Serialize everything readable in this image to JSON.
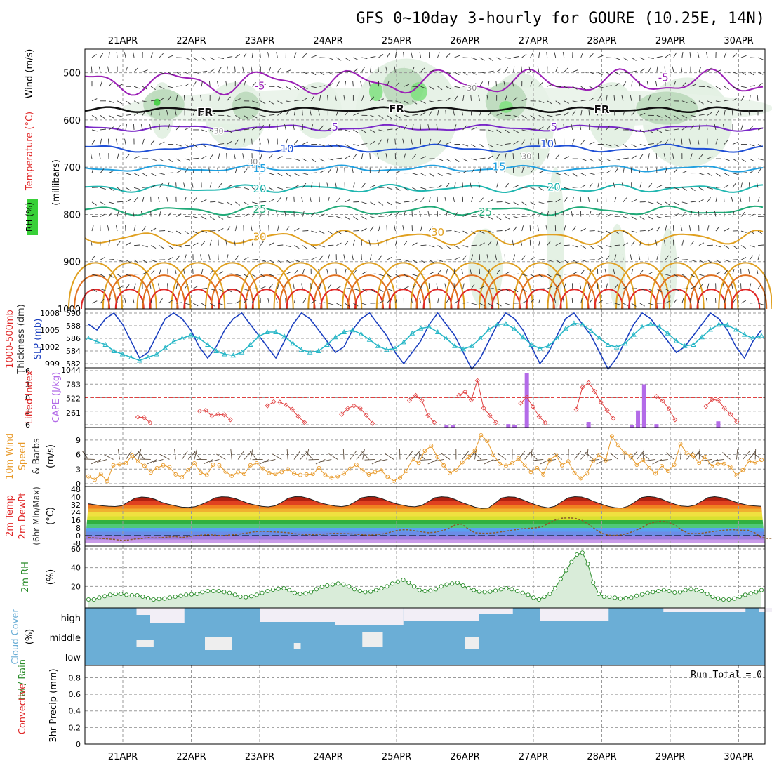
{
  "title": "GFS 0~10day 3-hourly for GOURE (10.25E, 14N)",
  "colors": {
    "temp_cold": "#9b1fb6",
    "temp_freeze": "#111111",
    "temp_5": "#7a28c8",
    "temp_10": "#1f4fd6",
    "temp_15": "#1fa0e0",
    "temp_20": "#1fb6b0",
    "temp_25": "#1faa78",
    "temp_30": "#e0a020",
    "temp_35": "#e07020",
    "temp_40": "#e02828",
    "rh_fill": "#b9d8b9",
    "rh_dark": "#6f8f6f",
    "rh_bright": "#38d038",
    "slp": "#1b3fbf",
    "thickness": "#28b7c7",
    "lifted": "#e04040",
    "cape": "#b36be8",
    "wind10": "#e89a2a",
    "barb": "#333333",
    "cloud": "#6baed6",
    "rh2m": "#2a8c2a",
    "grid": "#9a9a9a"
  },
  "chart_data": [
    {
      "type": "heatmap",
      "title": "GFS 0~10day 3-hourly for GOURE (10.25E, 14N)",
      "xlabel": "",
      "x_ticks": [
        "21APR",
        "22APR",
        "23APR",
        "24APR",
        "25APR",
        "26APR",
        "27APR",
        "28APR",
        "29APR",
        "30APR"
      ],
      "ylabel_parts": [
        "RH (%)",
        "Temperature (°C)",
        "Wind (m/s)",
        "(millibars)"
      ],
      "y_ticks": [
        500,
        600,
        700,
        800,
        900,
        1000
      ],
      "ylim": [
        1000,
        450
      ],
      "contour_labels": [
        {
          "text": "-5",
          "day": 2.0,
          "p": 528
        },
        {
          "text": "-5",
          "day": 7.9,
          "p": 510
        },
        {
          "text": "FR",
          "day": 1.2,
          "p": 584
        },
        {
          "text": "FR",
          "day": 4.0,
          "p": 576
        },
        {
          "text": "FR",
          "day": 7.0,
          "p": 578
        },
        {
          "text": "5",
          "day": 3.1,
          "p": 615
        },
        {
          "text": "5",
          "day": 6.3,
          "p": 615
        },
        {
          "text": "10",
          "day": 2.4,
          "p": 661
        },
        {
          "text": "10",
          "day": 6.2,
          "p": 651
        },
        {
          "text": "15",
          "day": 2.0,
          "p": 703
        },
        {
          "text": "15",
          "day": 5.5,
          "p": 699
        },
        {
          "text": "20",
          "day": 2.0,
          "p": 746
        },
        {
          "text": "20",
          "day": 6.3,
          "p": 742
        },
        {
          "text": "25",
          "day": 2.0,
          "p": 789
        },
        {
          "text": "25",
          "day": 5.3,
          "p": 795
        },
        {
          "text": "30",
          "day": 2.0,
          "p": 848
        },
        {
          "text": "30",
          "day": 4.6,
          "p": 838
        },
        {
          "text": "30",
          "day": 1.4,
          "p": 622
        },
        {
          "text": "30",
          "day": 1.9,
          "p": 686
        },
        {
          "text": "30",
          "day": 5.1,
          "p": 530
        },
        {
          "text": "30",
          "day": 5.9,
          "p": 675
        }
      ]
    },
    {
      "type": "line",
      "ylabel": "1000-500mb Thickness (dm)",
      "ylabel2": "SLP (mb)",
      "left_ticks": [
        582,
        584,
        586,
        588,
        590
      ],
      "right_ticks": [
        999,
        1002,
        1005,
        1008
      ],
      "series": [
        {
          "name": "SLP (mb)",
          "axis": "right",
          "values": [
            1006,
            1005,
            1007,
            1008,
            1006,
            1003,
            1000,
            1001,
            1004,
            1007,
            1008,
            1007,
            1005,
            1002,
            1000,
            1002,
            1005,
            1007,
            1008,
            1006,
            1004,
            1002,
            1000,
            1003,
            1006,
            1008,
            1007,
            1005,
            1003,
            1001,
            1002,
            1005,
            1007,
            1008,
            1006,
            1004,
            1001,
            999,
            1001,
            1003,
            1006,
            1008,
            1006,
            1004,
            1001,
            998,
            1000,
            1003,
            1006,
            1008,
            1007,
            1005,
            1002,
            999,
            1001,
            1004,
            1007,
            1008,
            1006,
            1004,
            1001,
            998,
            1000,
            1003,
            1006,
            1008,
            1007,
            1005,
            1003,
            1001,
            1002,
            1004,
            1006,
            1008,
            1007,
            1005,
            1002,
            1000,
            1003,
            1005
          ]
        },
        {
          "name": "1000-500mb Thickness (dm)",
          "axis": "left",
          "values": [
            586,
            585.5,
            585,
            584,
            583.5,
            583,
            582.5,
            583,
            583.5,
            584.5,
            585.5,
            586,
            586.5,
            586,
            585,
            584,
            583.5,
            583.3,
            583.8,
            585,
            586.3,
            587,
            587,
            586.3,
            585.2,
            584.2,
            583.8,
            584,
            585,
            586.2,
            587,
            587.3,
            586.7,
            585.8,
            584.8,
            584.2,
            584.4,
            585.4,
            586.8,
            587.6,
            587.8,
            587,
            586,
            584.8,
            584.3,
            584.8,
            586,
            587.4,
            588.2,
            588.3,
            587.5,
            586.2,
            585,
            584.4,
            584.8,
            586,
            587.5,
            588.4,
            588.2,
            587.2,
            586,
            585,
            584.6,
            585.2,
            586.6,
            587.8,
            588.3,
            587.8,
            586.8,
            585.6,
            584.8,
            585,
            586.2,
            587.4,
            588.2,
            588.1,
            587.4,
            586.6,
            586,
            586.4
          ]
        }
      ]
    },
    {
      "type": "bar",
      "ylabel": "Lifted Index",
      "ylabel2": "CAPE (J/kg)",
      "left_ticks": [
        -6,
        -3,
        0,
        3,
        6
      ],
      "right_ticks": [
        261,
        522,
        783,
        1044
      ],
      "series": [
        {
          "name": "Lifted Index",
          "axis": "left",
          "values": [
            null,
            null,
            null,
            null,
            null,
            null,
            null,
            null,
            4.3,
            4.4,
            5.6,
            null,
            null,
            null,
            null,
            null,
            null,
            null,
            3,
            2.8,
            4.1,
            3.7,
            3.8,
            4.9,
            null,
            null,
            null,
            null,
            null,
            1.8,
            0.9,
            1,
            1.6,
            2.6,
            4.2,
            5.5,
            null,
            null,
            null,
            null,
            null,
            3.7,
            2.4,
            1.8,
            2.3,
            3.9,
            5.7,
            null,
            null,
            null,
            null,
            null,
            0.6,
            -0.5,
            0.6,
            3.9,
            5.5,
            null,
            null,
            null,
            -0.5,
            -1.3,
            0.5,
            -3.8,
            2.3,
            3.9,
            5.5,
            null,
            null,
            null,
            1.2,
            -0.1,
            2,
            4.2,
            5.6,
            null,
            null,
            null,
            null,
            2.6,
            -2.3,
            -3.3,
            -1.4,
            1,
            2.8,
            4.6,
            null,
            null,
            null,
            null,
            null,
            null,
            -0.3,
            0.7,
            2.5,
            4.9,
            null,
            null,
            null,
            null,
            1.9,
            0.4,
            0.6,
            2.3,
            3.7,
            5.3,
            null,
            null,
            null,
            null
          ]
        },
        {
          "name": "CAPE",
          "axis": "right",
          "values": [
            0,
            0,
            0,
            0,
            0,
            0,
            0,
            0,
            0,
            0,
            0,
            0,
            0,
            0,
            0,
            0,
            0,
            0,
            0,
            0,
            0,
            0,
            0,
            0,
            0,
            0,
            0,
            0,
            0,
            0,
            0,
            0,
            0,
            0,
            0,
            0,
            0,
            0,
            0,
            0,
            0,
            0,
            0,
            0,
            0,
            0,
            0,
            0,
            0,
            0,
            0,
            0,
            0,
            0,
            0,
            0,
            0,
            0,
            25,
            25,
            0,
            0,
            0,
            0,
            0,
            0,
            0,
            0,
            50,
            30,
            0,
            990,
            0,
            0,
            0,
            0,
            0,
            0,
            0,
            0,
            0,
            90,
            0,
            0,
            0,
            0,
            0,
            0,
            30,
            300,
            780,
            0,
            50,
            0,
            0,
            0,
            0,
            0,
            0,
            0,
            0,
            0,
            100,
            0,
            0,
            0,
            0,
            0,
            0,
            0
          ]
        }
      ]
    },
    {
      "type": "line",
      "ylabel": "10m Wind Speed & Barbs (m/s)",
      "y_ticks": [
        0,
        3,
        6,
        9
      ],
      "series": [
        {
          "name": "10m Wind Speed",
          "values": [
            1.5,
            0.8,
            2,
            0.5,
            3.8,
            4,
            4.2,
            5.8,
            4.6,
            3.7,
            2.3,
            3.2,
            3.8,
            3.4,
            1.9,
            1.3,
            2.8,
            4.2,
            2.3,
            1.8,
            3.9,
            3.8,
            2.5,
            1.6,
            2.4,
            2,
            3.8,
            4.2,
            3.1,
            2.2,
            2,
            2.4,
            3,
            2.1,
            1.8,
            1.9,
            2,
            3.2,
            1.8,
            1.2,
            1.5,
            2.1,
            3.1,
            3.9,
            2.7,
            1.9,
            2.4,
            2.7,
            1.4,
            0.6,
            1.2,
            2.6,
            5,
            4.3,
            6.8,
            7.8,
            5.5,
            3.8,
            2.2,
            2.9,
            4.4,
            5.5,
            6.8,
            10,
            8.8,
            5.9,
            4.1,
            3.7,
            4.2,
            5.2,
            3.9,
            2.4,
            3.2,
            1.9,
            4.8,
            5.9,
            3.8,
            4.6,
            2.2,
            1.1,
            2.1,
            4.7,
            5.9,
            4.8,
            9.8,
            7.9,
            6.4,
            5.7,
            3.9,
            4.9,
            3.2,
            2.1,
            3.6,
            2.6,
            3.9,
            8.2,
            6.3,
            5.8,
            4.3,
            5.5,
            3.6,
            4.1,
            4.1,
            3.5,
            1.7,
            2.8,
            4.6,
            4.4,
            4.9
          ]
        }
      ]
    },
    {
      "type": "area",
      "ylabel": "2m Temp 2m DewPt (6hr Min/Max) (°C)",
      "y_ticks": [
        -8,
        0,
        8,
        16,
        24,
        32,
        40,
        48
      ],
      "series": [
        {
          "name": "2m Temp",
          "values": [
            33,
            32,
            31,
            30.5,
            30.2,
            31,
            35,
            38.8,
            40,
            39.5,
            37.5,
            34.5,
            32.5,
            31,
            29.5,
            29.3,
            30,
            32.5,
            35.5,
            39.2,
            40.3,
            40,
            38.5,
            36,
            33.4,
            31.8,
            30.4,
            29.8,
            31,
            34.5,
            38.8,
            40.4,
            40.3,
            38.7,
            36,
            33.6,
            32,
            30.7,
            30.1,
            31.2,
            35,
            39.2,
            40.4,
            40.3,
            38.4,
            35.8,
            33.4,
            31.8,
            30.4,
            29.9,
            31.3,
            35.2,
            39.3,
            40.3,
            39.8,
            37.5,
            34.5,
            32,
            29.5,
            28.2,
            28.5,
            33.5,
            39,
            40.2,
            39.8,
            37.5,
            34.8,
            32.2,
            30,
            28.8,
            30.5,
            35,
            39.2,
            40.4,
            40,
            38,
            35,
            32.6,
            30.4,
            29,
            28.5,
            30.5,
            34.8,
            39.5,
            40.5,
            39.8,
            37.8,
            35,
            32.6,
            30.7,
            30.2,
            31.5,
            35.5,
            39.5,
            40.4,
            39.5,
            37.5,
            35,
            33,
            31.5,
            30.8,
            30.3
          ]
        },
        {
          "name": "2m DewPt",
          "values": [
            -2,
            -2.5,
            -3,
            -3.5,
            -4,
            -5,
            -4.5,
            -3.5,
            -3,
            -2,
            -2.5,
            -2,
            -1.5,
            -1,
            -2,
            -1,
            0,
            0.5,
            1,
            0.5,
            0,
            0.5,
            1,
            2,
            3,
            4,
            4.5,
            4.2,
            3.8,
            3.5,
            3,
            2,
            1.5,
            1,
            1.2,
            1.5,
            2,
            2.5,
            2.2,
            2,
            1.5,
            1,
            0.5,
            1,
            1.5,
            3,
            5,
            6,
            6,
            5,
            4,
            3,
            3.5,
            5,
            7,
            11,
            12,
            7,
            3,
            2.5,
            2.5,
            3,
            4,
            5,
            6,
            7,
            7.5,
            8,
            9,
            12.5,
            16,
            18,
            18.4,
            18,
            16,
            12,
            7,
            2.5,
            0.5,
            0.3,
            0.8,
            2.5,
            5,
            8,
            12,
            14,
            15,
            14,
            11,
            6,
            2.5,
            2,
            2.5,
            3.5,
            4.5,
            5.3,
            6,
            6,
            5.5,
            5.5,
            3,
            -2,
            -3,
            -2.5,
            -3,
            -4,
            -5.5,
            -6.5
          ]
        }
      ]
    },
    {
      "type": "area",
      "ylabel": "2m RH (%)",
      "y_ticks": [
        20,
        40,
        60
      ],
      "series": [
        {
          "name": "2m RH",
          "values": [
            6,
            6,
            8,
            9.5,
            11,
            12,
            12,
            11,
            10.5,
            10.5,
            9,
            7.5,
            6,
            6.5,
            7,
            8,
            9,
            10,
            11,
            11.5,
            12,
            14,
            15,
            15,
            15,
            14,
            13,
            11,
            9,
            8.5,
            9.5,
            11,
            13,
            15,
            16.5,
            17.5,
            18,
            16,
            13,
            12,
            12.5,
            14,
            17,
            19.5,
            21,
            22,
            23,
            22,
            20,
            17,
            15,
            14,
            14.5,
            16,
            18,
            20,
            23,
            25,
            27,
            24,
            20,
            16,
            15,
            15.5,
            17,
            20,
            22,
            23,
            24,
            21,
            18,
            16,
            14.5,
            14,
            14.5,
            15.5,
            17,
            18,
            17,
            15,
            13,
            11,
            8,
            6,
            9,
            12,
            18,
            28,
            37,
            46,
            54,
            56,
            44,
            24,
            12,
            9,
            9,
            8,
            7,
            7.5,
            8,
            10,
            11.5,
            13,
            14,
            15,
            16,
            15,
            13.5,
            14,
            16,
            17,
            16,
            15,
            12,
            9,
            7,
            6,
            6,
            7,
            9,
            11,
            12.5,
            14,
            16
          ]
        }
      ]
    },
    {
      "type": "bar",
      "ylabel": "Cloud Cover (%)",
      "y_labels": [
        "high",
        "middle",
        "low"
      ]
    },
    {
      "type": "bar",
      "ylabel": "3hr Precip (mm)",
      "ylabel2": "Total / Rain Convective",
      "y_ticks": [
        0,
        0.2,
        0.4,
        0.6,
        0.8
      ],
      "annotation": "Run Total = 0"
    }
  ]
}
